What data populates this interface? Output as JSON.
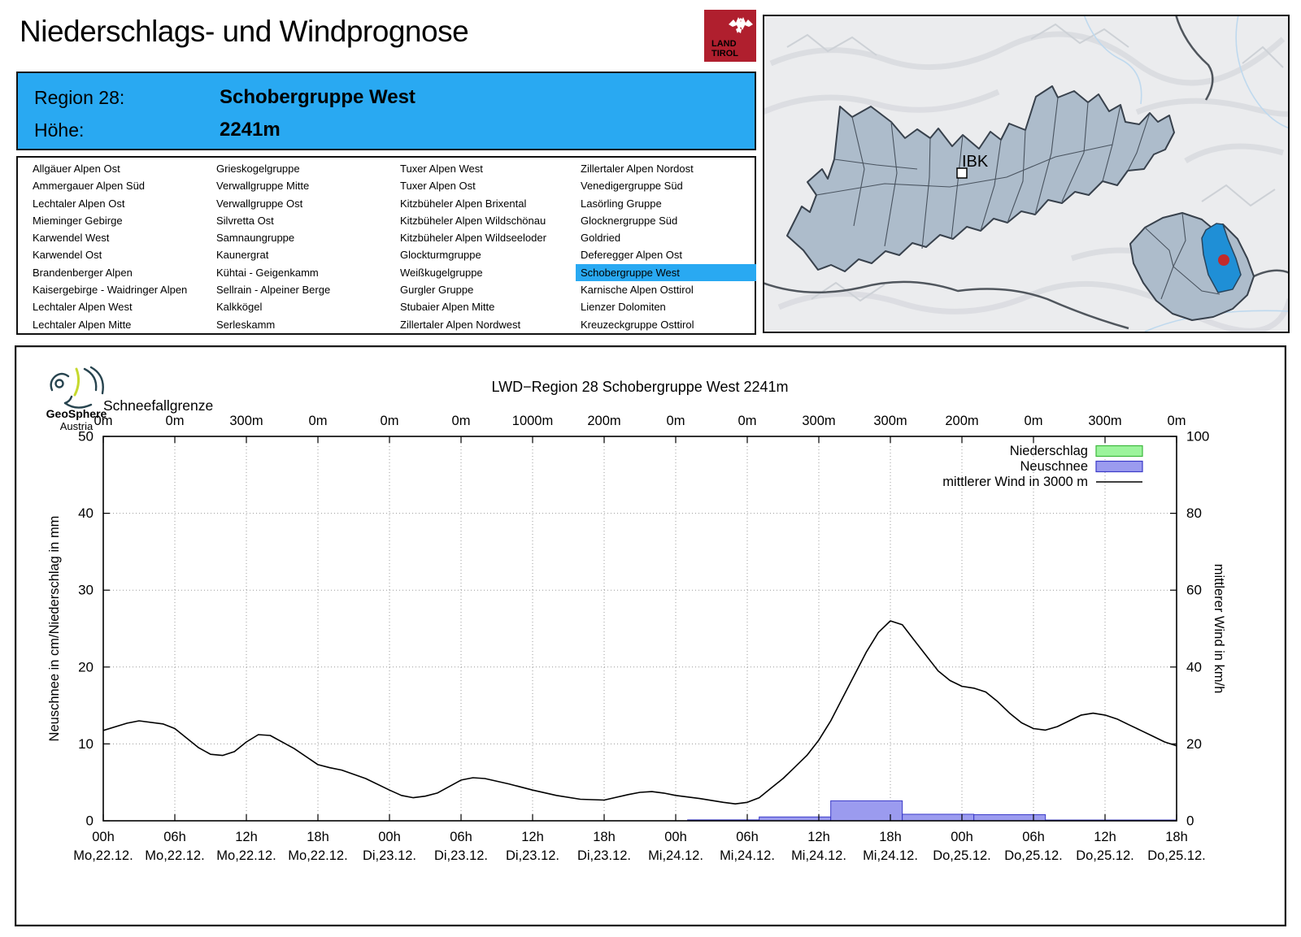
{
  "page": {
    "title": "Niederschlags- und Windprognose"
  },
  "tirol_logo": {
    "line1": "LAND",
    "line2": "TIROL",
    "color": "#B01F2E"
  },
  "geosphere_logo": {
    "line1": "GeoSphere",
    "line2": "Austria"
  },
  "region_header": {
    "region_label": "Region 28:",
    "region_name": "Schobergruppe West",
    "altitude_label": "Höhe:",
    "altitude_value": "2241m",
    "bg_color": "#29A9F2"
  },
  "region_list": {
    "highlight_color": "#29A9F2",
    "selected": {
      "column": 3,
      "row": 6,
      "name": "Schobergruppe West"
    },
    "columns": [
      [
        "Allgäuer Alpen Ost",
        "Ammergauer Alpen Süd",
        "Lechtaler Alpen Ost",
        "Mieminger Gebirge",
        "Karwendel West",
        "Karwendel Ost",
        "Brandenberger Alpen",
        "Kaisergebirge - Waidringer Alpen",
        "Lechtaler Alpen West",
        "Lechtaler Alpen Mitte"
      ],
      [
        "Grieskogelgruppe",
        "Verwallgruppe Mitte",
        "Verwallgruppe Ost",
        "Silvretta Ost",
        "Samnaungruppe",
        "Kaunergrat",
        "Kühtai - Geigenkamm",
        "Sellrain - Alpeiner Berge",
        "Kalkkögel",
        "Serleskamm"
      ],
      [
        "Tuxer Alpen West",
        "Tuxer Alpen Ost",
        "Kitzbüheler Alpen Brixental",
        "Kitzbüheler Alpen Wildschönau",
        "Kitzbüheler Alpen Wildseeloder",
        "Glockturmgruppe",
        "Weißkugelgruppe",
        "Gurgler Gruppe",
        "Stubaier Alpen Mitte",
        "Zillertaler Alpen Nordwest"
      ],
      [
        "Zillertaler Alpen Nordost",
        "Venedigergruppe Süd",
        "Lasörling Gruppe",
        "Glocknergruppe Süd",
        "Goldried",
        "Deferegger Alpen Ost",
        "Schobergruppe West",
        "Karnische Alpen Osttirol",
        "Lienzer Dolomiten",
        "Kreuzeckgruppe Osttirol"
      ]
    ]
  },
  "map": {
    "city_label": "IBK",
    "highlight_color": "#1F8FD6",
    "marker_color": "#C22B2B",
    "region_fill": "#ADBCCB"
  },
  "chart_data": {
    "type": "line+bar",
    "title": "LWD−Region 28 Schobergruppe West 2241m",
    "top_axis_label": "Schneefallgrenze",
    "snowline_labels": [
      "0m",
      "0m",
      "300m",
      "0m",
      "0m",
      "0m",
      "1000m",
      "200m",
      "0m",
      "0m",
      "300m",
      "300m",
      "200m",
      "0m",
      "300m",
      "0m"
    ],
    "x_tick_hours": [
      "00h",
      "06h",
      "12h",
      "18h",
      "00h",
      "06h",
      "12h",
      "18h",
      "00h",
      "06h",
      "12h",
      "18h",
      "00h",
      "06h",
      "12h",
      "18h"
    ],
    "x_tick_days": [
      "Mo,22.12.",
      "Mo,22.12.",
      "Mo,22.12.",
      "Mo,22.12.",
      "Di,23.12.",
      "Di,23.12.",
      "Di,23.12.",
      "Di,23.12.",
      "Mi,24.12.",
      "Mi,24.12.",
      "Mi,24.12.",
      "Mi,24.12.",
      "Do,25.12.",
      "Do,25.12.",
      "Do,25.12.",
      "Do,25.12."
    ],
    "x_range_hours": [
      0,
      90
    ],
    "ylabel_left": "Neuschnee in cm/Niederschlag in mm",
    "ylabel_right": "mittlerer Wind in km/h",
    "ylim_left": [
      0,
      50
    ],
    "ylim_right": [
      0,
      100
    ],
    "yticks_left": [
      0,
      10,
      20,
      30,
      40,
      50
    ],
    "yticks_right": [
      0,
      20,
      40,
      60,
      80,
      100
    ],
    "grid": true,
    "legend_position": "top-right",
    "legend": [
      {
        "label": "Niederschlag",
        "type": "box",
        "fill": "#9CF49C",
        "border": "#3CB83C"
      },
      {
        "label": "Neuschnee",
        "type": "box",
        "fill": "#9B9BEF",
        "border": "#3A3AC8"
      },
      {
        "label": "mittlerer Wind in 3000 m",
        "type": "line",
        "color": "#000000"
      }
    ],
    "niederschlag_bars_mm": [],
    "neuschnee_bars": [
      {
        "from_h": 49,
        "to_h": 55,
        "cm": 0.12
      },
      {
        "from_h": 55,
        "to_h": 61,
        "cm": 0.5
      },
      {
        "from_h": 61,
        "to_h": 67,
        "cm": 2.6
      },
      {
        "from_h": 67,
        "to_h": 73,
        "cm": 0.85
      },
      {
        "from_h": 73,
        "to_h": 79,
        "cm": 0.8
      },
      {
        "from_h": 79,
        "to_h": 90,
        "cm": 0.1
      }
    ],
    "wind_series": {
      "name": "mittlerer Wind in 3000 m",
      "x_hours": [
        0,
        2,
        3,
        5,
        6,
        8,
        9,
        10,
        11,
        12,
        13,
        14,
        16,
        18,
        19,
        20,
        22,
        24,
        25,
        26,
        27,
        28,
        30,
        31,
        32,
        34,
        36,
        38,
        40,
        42,
        44,
        45,
        46,
        47,
        48,
        50,
        52,
        53,
        54,
        55,
        56,
        57,
        58,
        59,
        60,
        61,
        62,
        63,
        64,
        65,
        66,
        67,
        68,
        69,
        70,
        71,
        72,
        73,
        74,
        75,
        76,
        77,
        78,
        79,
        80,
        81,
        82,
        83,
        84,
        85,
        86,
        87,
        88,
        89,
        90
      ],
      "values_kmh": [
        23.5,
        25.4,
        26,
        25.2,
        24,
        19,
        17.3,
        17,
        18,
        20.5,
        22.4,
        22.2,
        18.8,
        14.6,
        13.8,
        13.2,
        11,
        8,
        6.6,
        6,
        6.4,
        7.2,
        10.6,
        11.2,
        11,
        9.6,
        8,
        6.6,
        5.6,
        5.4,
        6.8,
        7.4,
        7.6,
        7.2,
        6.6,
        5.8,
        4.8,
        4.4,
        4.8,
        6,
        8.5,
        11,
        14,
        17,
        21,
        26,
        32,
        38,
        44,
        49,
        52,
        51,
        47,
        43,
        39,
        36.5,
        35,
        34.5,
        33.5,
        31,
        28,
        25.5,
        24,
        23.6,
        24.5,
        26,
        27.5,
        28,
        27.5,
        26.5,
        25,
        23.5,
        22,
        20.5,
        19.5
      ]
    }
  }
}
